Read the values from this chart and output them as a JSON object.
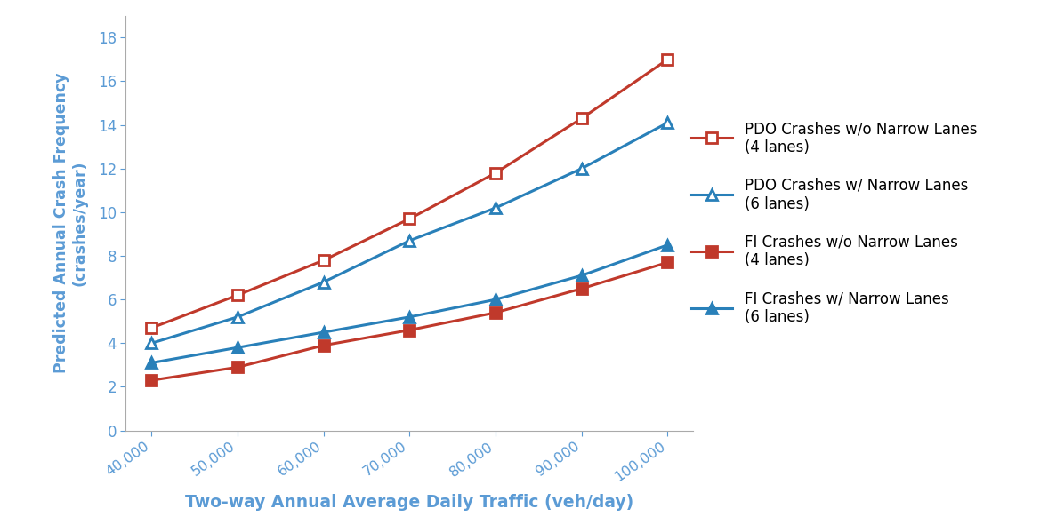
{
  "x": [
    40000,
    50000,
    60000,
    70000,
    80000,
    90000,
    100000
  ],
  "pdo_no_narrow": [
    4.7,
    6.2,
    7.8,
    9.7,
    11.8,
    14.3,
    17.0
  ],
  "pdo_narrow": [
    4.0,
    5.2,
    6.8,
    8.7,
    10.2,
    12.0,
    14.1
  ],
  "fi_no_narrow": [
    2.3,
    2.9,
    3.9,
    4.6,
    5.4,
    6.5,
    7.7
  ],
  "fi_narrow": [
    3.1,
    3.8,
    4.5,
    5.2,
    6.0,
    7.1,
    8.5
  ],
  "colors": {
    "red": "#c0392b",
    "blue": "#2980b9"
  },
  "xlabel": "Two-way Annual Average Daily Traffic (veh/day)",
  "ylabel": "Predicted Annual Crash Frequency\n(crashes/year)",
  "legend": [
    "PDO Crashes w/o Narrow Lanes\n(4 lanes)",
    "PDO Crashes w/ Narrow Lanes\n(6 lanes)",
    "FI Crashes w/o Narrow Lanes\n(4 lanes)",
    "FI Crashes w/ Narrow Lanes\n(6 lanes)"
  ],
  "ylim": [
    0,
    19
  ],
  "yticks": [
    0,
    2,
    4,
    6,
    8,
    10,
    12,
    14,
    16,
    18
  ],
  "xticks": [
    40000,
    50000,
    60000,
    70000,
    80000,
    90000,
    100000
  ],
  "axis_color": "#5b9bd5",
  "label_color": "#5b9bd5"
}
